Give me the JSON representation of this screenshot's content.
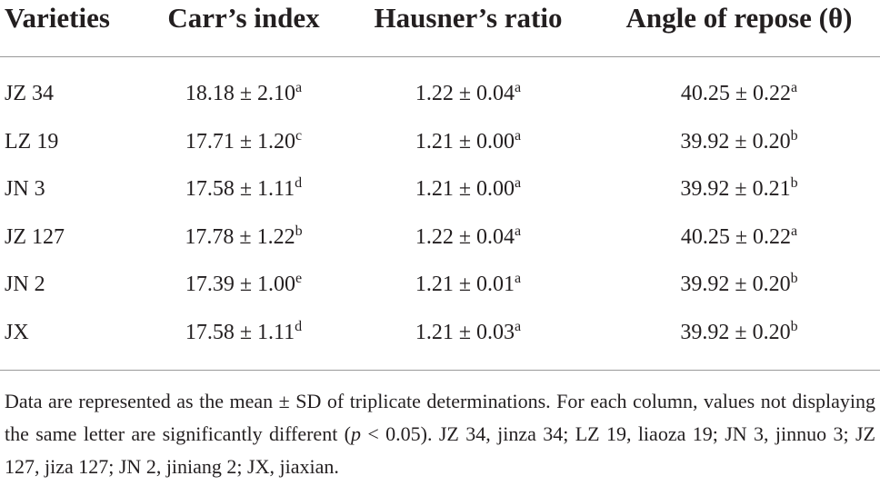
{
  "table": {
    "header": [
      "Varieties",
      "Carr’s index",
      "Hausner’s ratio",
      "Angle of repose (θ)"
    ],
    "rows": [
      [
        "JZ 34",
        {
          "text": "18.18 ± 2.10",
          "sup": "a"
        },
        {
          "text": "1.22 ± 0.04",
          "sup": "a"
        },
        {
          "text": "40.25 ± 0.22",
          "sup": "a"
        }
      ],
      [
        "LZ 19",
        {
          "text": "17.71 ± 1.20",
          "sup": "c"
        },
        {
          "text": "1.21 ± 0.00",
          "sup": "a"
        },
        {
          "text": "39.92 ± 0.20",
          "sup": "b"
        }
      ],
      [
        "JN 3",
        {
          "text": "17.58 ± 1.11",
          "sup": "d"
        },
        {
          "text": "1.21 ± 0.00",
          "sup": "a"
        },
        {
          "text": "39.92 ± 0.21",
          "sup": "b"
        }
      ],
      [
        "JZ 127",
        {
          "text": "17.78 ± 1.22",
          "sup": "b"
        },
        {
          "text": "1.22 ± 0.04",
          "sup": "a"
        },
        {
          "text": "40.25 ± 0.22",
          "sup": "a"
        }
      ],
      [
        "JN 2",
        {
          "text": "17.39 ± 1.00",
          "sup": "e"
        },
        {
          "text": "1.21 ± 0.01",
          "sup": "a"
        },
        {
          "text": "39.92 ± 0.20",
          "sup": "b"
        }
      ],
      [
        "JX",
        {
          "text": "17.58 ± 1.11",
          "sup": "d"
        },
        {
          "text": "1.21 ± 0.03",
          "sup": "a"
        },
        {
          "text": "39.92 ± 0.20",
          "sup": "b"
        }
      ]
    ]
  },
  "footnote": [
    "Data are represented as the mean ± SD of triplicate determinations. For each column, values not displaying the same letter are significantly different (",
    "p",
    " < 0.05). JZ 34, jinza 34; LZ 19, liaoza 19; JN 3, jinnuo 3; JZ 127, jiza 127; JN 2, jiniang 2; JX, jiaxian."
  ]
}
